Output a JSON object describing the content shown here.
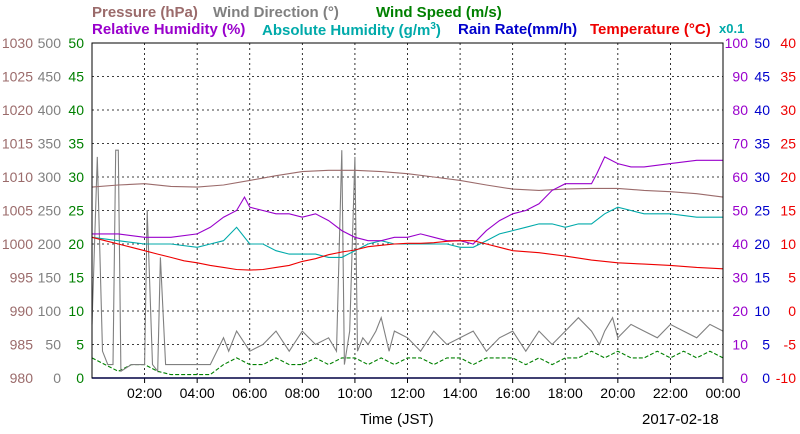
{
  "chart_data": {
    "type": "line",
    "date": "2017-02-18",
    "xlabel": "Time (JST)",
    "x_ticks": [
      "02:00",
      "04:00",
      "06:00",
      "08:00",
      "10:00",
      "12:00",
      "14:00",
      "16:00",
      "18:00",
      "20:00",
      "22:00",
      "00:00"
    ],
    "x_range_hours": [
      0,
      24
    ],
    "grid": true,
    "legend": [
      {
        "label": "Pressure (hPa)",
        "color": "#9b6b6b"
      },
      {
        "label": "Wind Direction (°)",
        "color": "#808080"
      },
      {
        "label": "Wind Speed (m/s)",
        "color": "#008000"
      },
      {
        "label": "Relative Humidity (%)",
        "color": "#9900cc"
      },
      {
        "label": "Absolute Humidity (g/m",
        "sup": "3",
        "suffix": ")",
        "color": "#00aaaa"
      },
      {
        "label": "Rain Rate(mm/h)",
        "color": "#0000cc"
      },
      {
        "label": "Temperature (°C)",
        "color": "#ee0000"
      },
      {
        "label": "x0.1",
        "color": "#00aaaa"
      }
    ],
    "axes": {
      "pressure": {
        "color": "#9b6b6b",
        "range": [
          980,
          1030
        ],
        "ticks": [
          "980",
          "985",
          "990",
          "995",
          "1000",
          "1005",
          "1010",
          "1015",
          "1020",
          "1025",
          "1030"
        ]
      },
      "wind_dir": {
        "color": "#808080",
        "range": [
          0,
          500
        ],
        "ticks": [
          "0",
          "50",
          "100",
          "150",
          "200",
          "250",
          "300",
          "350",
          "400",
          "450",
          "500"
        ]
      },
      "wind_spd": {
        "color": "#008000",
        "range": [
          0,
          50
        ],
        "ticks": [
          "0",
          "5",
          "10",
          "15",
          "20",
          "25",
          "30",
          "35",
          "40",
          "45",
          "50"
        ]
      },
      "humidity": {
        "color": "#9900cc",
        "range": [
          0,
          100
        ],
        "ticks": [
          "0",
          "10",
          "20",
          "30",
          "40",
          "50",
          "60",
          "70",
          "80",
          "90",
          "100"
        ]
      },
      "rain": {
        "color": "#0000cc",
        "range": [
          0,
          50
        ],
        "ticks": [
          "0",
          "5",
          "10",
          "15",
          "20",
          "25",
          "30",
          "35",
          "40",
          "45",
          "50"
        ]
      },
      "temp": {
        "color": "#ee0000",
        "range": [
          -10,
          40
        ],
        "ticks": [
          "-10",
          "-5",
          "0",
          "5",
          "10",
          "15",
          "20",
          "25",
          "30",
          "35",
          "40"
        ]
      }
    },
    "series": [
      {
        "name": "Pressure (hPa)",
        "axis": "pressure",
        "color": "#9b6b6b",
        "x": [
          0,
          1,
          2,
          3,
          4,
          5,
          6,
          7,
          8,
          9,
          10,
          11,
          12,
          13,
          14,
          15,
          16,
          17,
          18,
          19,
          20,
          21,
          22,
          23,
          24
        ],
        "y": [
          1008.5,
          1008.8,
          1009,
          1008.6,
          1008.5,
          1008.8,
          1009.5,
          1010.2,
          1010.8,
          1011,
          1011,
          1010.8,
          1010.5,
          1010,
          1009.5,
          1008.8,
          1008.2,
          1008,
          1008.2,
          1008.3,
          1008.3,
          1008,
          1007.8,
          1007.5,
          1007
        ]
      },
      {
        "name": "Temperature (°C)",
        "axis": "temp",
        "color": "#ee0000",
        "x": [
          0,
          0.5,
          1,
          1.5,
          2,
          2.5,
          3,
          3.5,
          4,
          4.5,
          5,
          5.5,
          6,
          6.5,
          7,
          7.5,
          8,
          8.5,
          9,
          9.5,
          10,
          10.5,
          11,
          11.5,
          12,
          12.5,
          13,
          13.5,
          14,
          14.5,
          15,
          15.5,
          16,
          17,
          18,
          19,
          20,
          21,
          22,
          23,
          24
        ],
        "y": [
          11,
          10.5,
          10,
          9.5,
          9,
          8.5,
          8,
          7.5,
          7.2,
          6.8,
          6.5,
          6.2,
          6.1,
          6.2,
          6.5,
          6.8,
          7.4,
          7.8,
          8.4,
          8.8,
          9.1,
          9.6,
          9.8,
          10,
          10.1,
          10.1,
          10.2,
          10.4,
          10.5,
          10.5,
          10,
          9.5,
          9,
          8.7,
          8.2,
          7.6,
          7.2,
          7,
          6.8,
          6.5,
          6.3
        ]
      },
      {
        "name": "Relative Humidity (%)",
        "axis": "humidity",
        "color": "#9900cc",
        "x": [
          0,
          0.5,
          1,
          2,
          3,
          4,
          4.5,
          5,
          5.5,
          5.8,
          6,
          6.5,
          7,
          7.5,
          8,
          8.5,
          9,
          9.5,
          10,
          10.5,
          11,
          11.5,
          12,
          12.5,
          13,
          13.5,
          14,
          14.5,
          15,
          15.5,
          16,
          16.5,
          17,
          17.5,
          18,
          18.5,
          19,
          19.2,
          19.5,
          20,
          20.5,
          21,
          22,
          23,
          24
        ],
        "y": [
          43,
          43,
          43,
          42,
          42,
          43,
          45,
          48,
          50,
          54,
          51,
          50,
          49,
          49,
          48,
          49,
          47,
          44,
          42,
          41,
          41,
          42,
          42,
          43,
          42,
          41,
          41,
          40,
          44,
          47,
          49,
          50,
          52,
          56,
          58,
          58,
          58,
          61,
          66,
          64,
          63,
          63,
          64,
          65,
          65
        ]
      },
      {
        "name": "Absolute Humidity (g/m3) x0.1",
        "axis": "humidity",
        "color": "#00aaaa",
        "x": [
          0,
          1,
          2,
          3,
          4,
          4.5,
          5,
          5.5,
          6,
          6.5,
          7,
          7.5,
          8,
          8.5,
          9,
          9.5,
          10,
          10.5,
          11,
          11.5,
          12,
          12.5,
          13,
          13.5,
          14,
          14.5,
          15,
          15.5,
          16,
          16.5,
          17,
          17.5,
          18,
          18.5,
          19,
          19.5,
          20,
          20.5,
          21,
          22,
          23,
          24
        ],
        "y": [
          42,
          41,
          40,
          40,
          39,
          40,
          41,
          45,
          40,
          40,
          38,
          37,
          37,
          37,
          36,
          36,
          38,
          40,
          41,
          40,
          40,
          40,
          40,
          40,
          39,
          39,
          41,
          43,
          44,
          45,
          46,
          46,
          45,
          46,
          46,
          49,
          51,
          50,
          49,
          49,
          48,
          48
        ]
      },
      {
        "name": "Wind Direction (°)",
        "axis": "wind_dir",
        "color": "#808080",
        "x": [
          0,
          0.2,
          0.4,
          0.6,
          0.8,
          0.9,
          1.0,
          1.1,
          1.5,
          2.0,
          2.1,
          2.3,
          2.5,
          2.6,
          2.8,
          3.0,
          3.5,
          4.0,
          4.5,
          5.0,
          5.2,
          5.5,
          6.0,
          6.5,
          7.0,
          7.5,
          8.0,
          8.5,
          9.0,
          9.3,
          9.5,
          9.6,
          9.8,
          10.0,
          10.1,
          10.3,
          10.5,
          10.8,
          11.0,
          11.3,
          11.5,
          12.0,
          12.5,
          13.0,
          13.5,
          14.0,
          14.5,
          15.0,
          15.5,
          16.0,
          16.5,
          17.0,
          17.5,
          18.0,
          18.5,
          19.0,
          19.3,
          19.5,
          19.8,
          20.0,
          20.5,
          21.0,
          21.5,
          22.0,
          22.5,
          23.0,
          23.5,
          24.0
        ],
        "y": [
          80,
          330,
          40,
          20,
          20,
          340,
          340,
          10,
          20,
          20,
          250,
          20,
          10,
          180,
          20,
          20,
          20,
          20,
          20,
          60,
          40,
          70,
          40,
          50,
          70,
          40,
          70,
          50,
          60,
          40,
          340,
          20,
          70,
          330,
          40,
          60,
          50,
          70,
          90,
          40,
          70,
          60,
          40,
          70,
          50,
          60,
          70,
          40,
          60,
          70,
          40,
          70,
          50,
          70,
          90,
          70,
          50,
          70,
          90,
          60,
          80,
          70,
          60,
          80,
          70,
          60,
          80,
          70
        ]
      },
      {
        "name": "Wind Speed (m/s)",
        "axis": "wind_spd",
        "color": "#008000",
        "x": [
          0,
          0.5,
          1,
          1.5,
          2,
          2.5,
          3,
          3.5,
          4,
          4.5,
          5,
          5.5,
          6,
          6.5,
          7,
          7.5,
          8,
          8.5,
          9,
          9.5,
          10,
          10.5,
          11,
          11.5,
          12,
          12.5,
          13,
          13.5,
          14,
          14.5,
          15,
          15.5,
          16,
          16.5,
          17,
          17.5,
          18,
          18.5,
          19,
          19.5,
          20,
          20.5,
          21,
          21.5,
          22,
          22.5,
          23,
          23.5,
          24
        ],
        "y": [
          3,
          2,
          1,
          2,
          2,
          1,
          0.5,
          0.5,
          0.5,
          0.5,
          2,
          3,
          2,
          2,
          3,
          2,
          2,
          3,
          2,
          3,
          3,
          2,
          3,
          2,
          3,
          3,
          2,
          3,
          3,
          2,
          3,
          3,
          3,
          2,
          3,
          2,
          3,
          3,
          4,
          3,
          4,
          3,
          3,
          4,
          3,
          4,
          3,
          4,
          3
        ]
      },
      {
        "name": "Rain Rate(mm/h)",
        "axis": "rain",
        "color": "#0000cc",
        "x": [
          0,
          24
        ],
        "y": [
          0,
          0
        ]
      }
    ]
  }
}
